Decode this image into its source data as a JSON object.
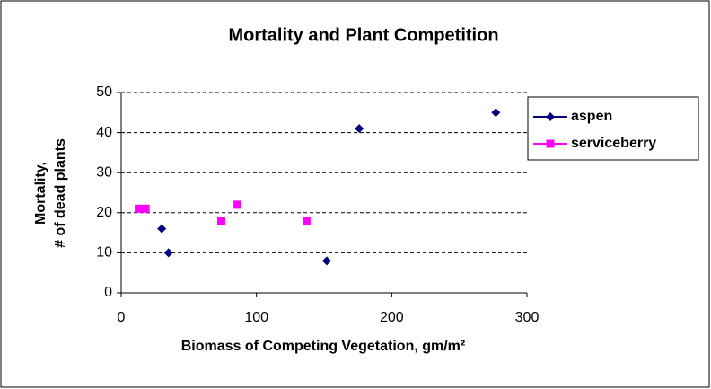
{
  "chart_data": {
    "type": "scatter",
    "title": "Mortality and Plant Competition",
    "x_label": "Biomass of Competing Vegetation, gm/m²",
    "y_label": [
      "Mortality,",
      "# of dead plants"
    ],
    "series": [
      {
        "name": "aspen",
        "color": "#000080",
        "marker": "diamond",
        "x": [
          30,
          35,
          152,
          176,
          277
        ],
        "values": [
          16,
          10,
          8,
          41,
          45
        ]
      },
      {
        "name": "serviceberry",
        "color": "#ff00ff",
        "marker": "square",
        "x": [
          13,
          18,
          74,
          86,
          137
        ],
        "values": [
          21,
          21,
          18,
          22,
          18
        ]
      }
    ],
    "xlim": [
      0,
      300
    ],
    "xticks": [
      0,
      100,
      200,
      300
    ],
    "ylim": [
      0,
      50
    ],
    "yticks": [
      0,
      10,
      20,
      30,
      40,
      50
    ],
    "grid": true,
    "legend": "right"
  }
}
